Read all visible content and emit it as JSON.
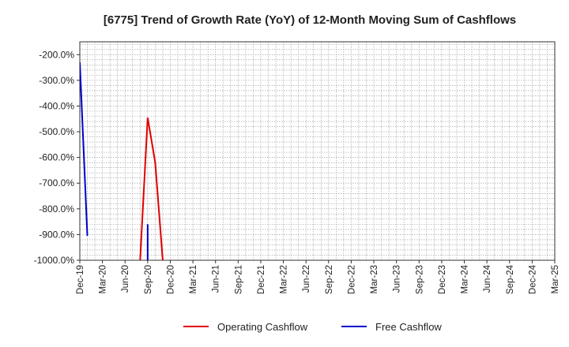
{
  "chart_data": {
    "type": "line",
    "title": "[6775]  Trend of Growth Rate (YoY) of 12-Month Moving Sum of Cashflows",
    "xlabel": "",
    "ylabel": "",
    "x_ticks": [
      "Dec-19",
      "Mar-20",
      "Jun-20",
      "Sep-20",
      "Dec-20",
      "Mar-21",
      "Jun-21",
      "Sep-21",
      "Dec-21",
      "Mar-22",
      "Jun-22",
      "Sep-22",
      "Dec-22",
      "Mar-23",
      "Jun-23",
      "Sep-23",
      "Dec-23",
      "Mar-24",
      "Jun-24",
      "Sep-24",
      "Dec-24",
      "Mar-25"
    ],
    "x_range": [
      "2019-12",
      "2025-03"
    ],
    "y_ticks": [
      "-200.0%",
      "-300.0%",
      "-400.0%",
      "-500.0%",
      "-600.0%",
      "-700.0%",
      "-800.0%",
      "-900.0%",
      "-1000.0%"
    ],
    "ylim": [
      -1000,
      -150
    ],
    "grid": true,
    "legend_position": "bottom",
    "series": [
      {
        "name": "Operating Cashflow",
        "color": "#e00000",
        "points": [
          {
            "x": "2020-08",
            "y": -1000
          },
          {
            "x": "2020-09",
            "y": -445
          },
          {
            "x": "2020-10",
            "y": -620
          },
          {
            "x": "2020-11",
            "y": -1000
          }
        ]
      },
      {
        "name": "Free Cashflow",
        "color": "#0000cc",
        "points": [
          {
            "x": "2019-12",
            "y": -230
          },
          {
            "x": "2020-01",
            "y": -905
          }
        ],
        "spikes": [
          {
            "x": "2020-09",
            "y_from": -1000,
            "y_to": -860
          }
        ]
      }
    ]
  }
}
